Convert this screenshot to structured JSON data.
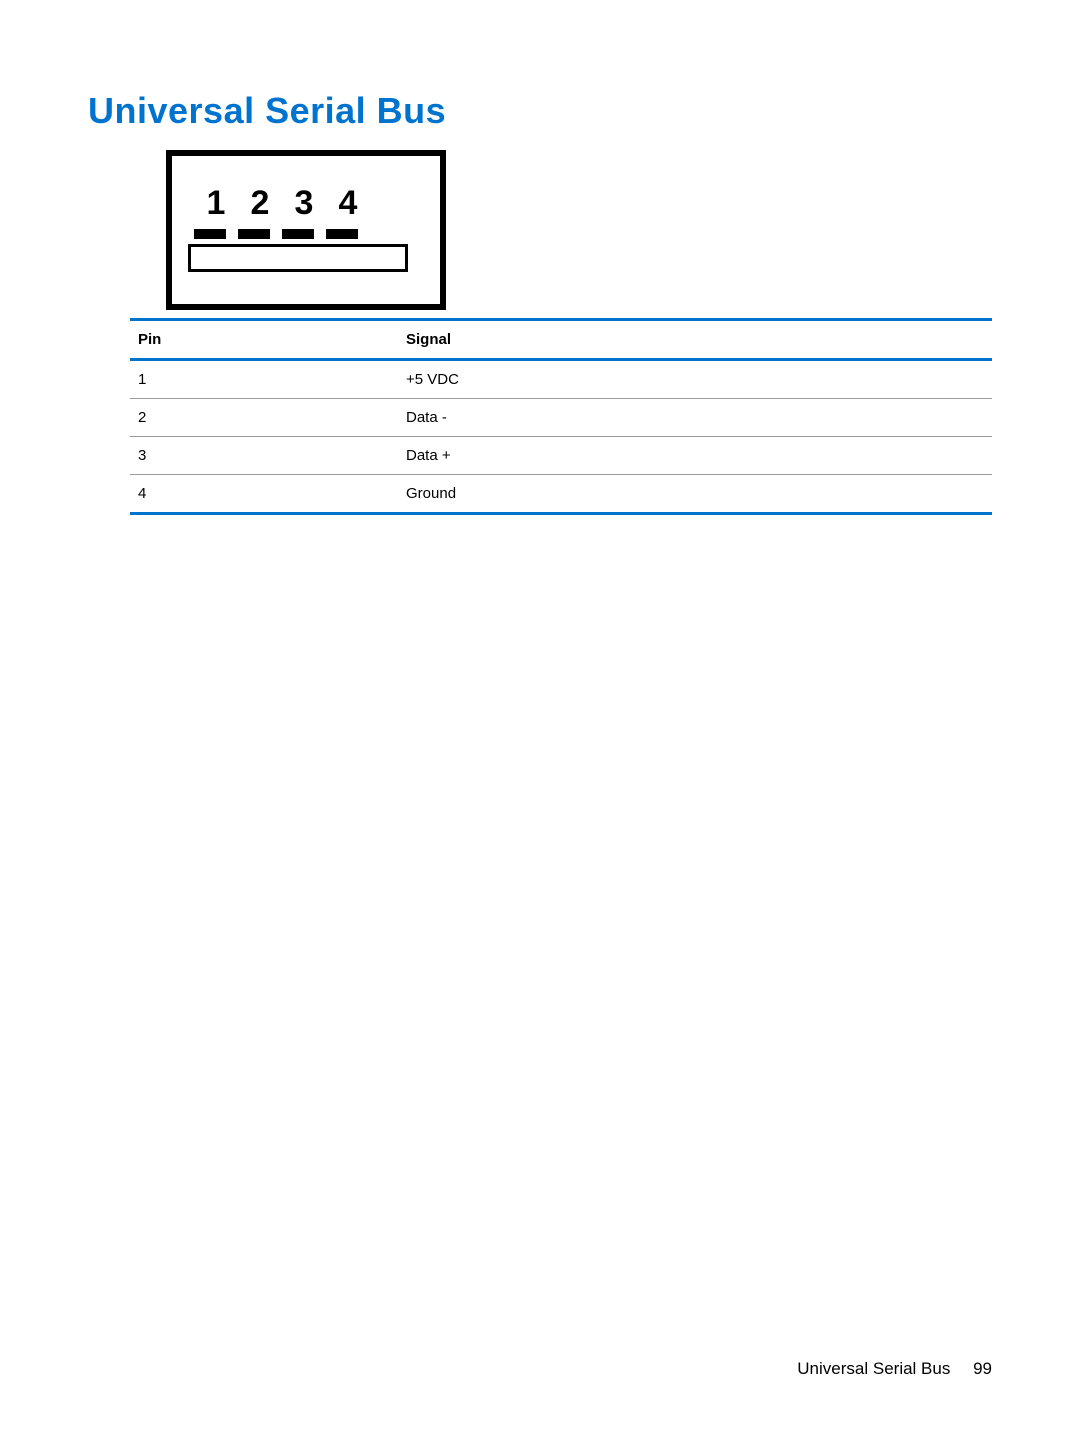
{
  "section": {
    "title": "Universal Serial Bus",
    "title_color": "#0073cf",
    "title_fontsize": 36
  },
  "diagram": {
    "pin_labels": [
      "1",
      "2",
      "3",
      "4"
    ],
    "outer_border_color": "#000000",
    "outer_border_width": 6,
    "contact_color": "#000000",
    "background_color": "#ffffff"
  },
  "table": {
    "type": "table",
    "accent_color": "#0073cf",
    "rule_color": "#9b9b9b",
    "header_fontsize": 15,
    "cell_fontsize": 15,
    "columns": [
      "Pin",
      "Signal"
    ],
    "rows": [
      [
        "1",
        "+5 VDC"
      ],
      [
        "2",
        "Data -"
      ],
      [
        "3",
        "Data +"
      ],
      [
        "4",
        "Ground"
      ]
    ]
  },
  "footer": {
    "label": "Universal Serial Bus",
    "page_number": "99"
  }
}
